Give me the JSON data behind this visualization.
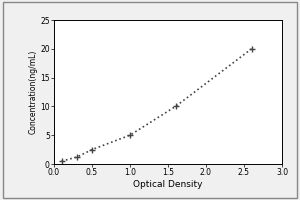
{
  "x_data": [
    0.1,
    0.3,
    0.5,
    1.0,
    1.6,
    2.6
  ],
  "y_data": [
    0.5,
    1.2,
    2.5,
    5.0,
    10.0,
    20.0
  ],
  "xlabel": "Optical Density",
  "ylabel": "Concentration(ng/mL)",
  "xlim": [
    0,
    3
  ],
  "ylim": [
    0,
    25
  ],
  "xticks": [
    0,
    0.5,
    1,
    1.5,
    2,
    2.5,
    3
  ],
  "yticks": [
    0,
    5,
    10,
    15,
    20,
    25
  ],
  "line_color": "#444444",
  "marker": "+",
  "marker_size": 5,
  "marker_color": "#444444",
  "background_color": "#f0f0f0",
  "plot_bg_color": "#ffffff",
  "box_color": "#000000",
  "xlabel_fontsize": 6.5,
  "ylabel_fontsize": 5.5,
  "tick_fontsize": 5.5,
  "line_style": "dotted",
  "line_width": 1.2
}
